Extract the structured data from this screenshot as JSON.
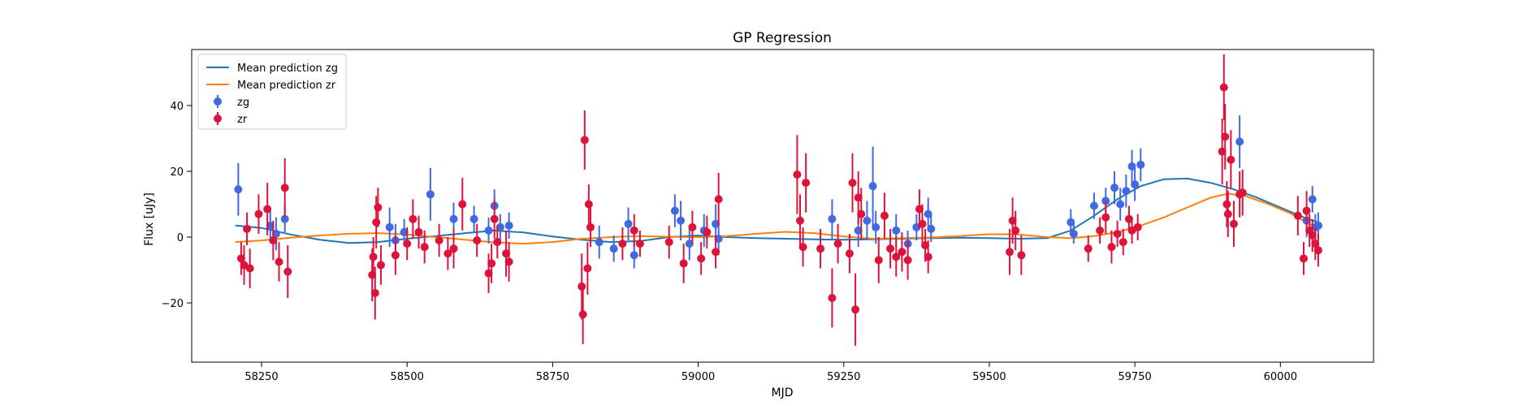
{
  "chart_data": {
    "type": "scatter",
    "title": "GP Regression",
    "xlabel": "MJD",
    "ylabel": "Flux [uJy]",
    "xlim": [
      58130,
      60160
    ],
    "ylim": [
      -38,
      57
    ],
    "xticks": [
      58250,
      58500,
      58750,
      59000,
      59250,
      59500,
      59750,
      60000
    ],
    "yticks": [
      -20,
      0,
      20,
      40
    ],
    "legend_position": "top-left",
    "grid": false,
    "series": [
      {
        "name": "Mean prediction zg",
        "kind": "line",
        "color": "#1f77b4",
        "points": [
          [
            58205,
            3.5
          ],
          [
            58250,
            2.8
          ],
          [
            58300,
            0.8
          ],
          [
            58350,
            -0.8
          ],
          [
            58400,
            -1.8
          ],
          [
            58450,
            -1.5
          ],
          [
            58500,
            -0.5
          ],
          [
            58550,
            0.3
          ],
          [
            58600,
            1.2
          ],
          [
            58650,
            2.0
          ],
          [
            58700,
            1.4
          ],
          [
            58750,
            0.2
          ],
          [
            58800,
            -0.8
          ],
          [
            58850,
            -1.5
          ],
          [
            58900,
            -1.2
          ],
          [
            58950,
            0.0
          ],
          [
            59000,
            0.5
          ],
          [
            59050,
            0.0
          ],
          [
            59100,
            -0.3
          ],
          [
            59150,
            -0.5
          ],
          [
            59200,
            -0.7
          ],
          [
            59250,
            -0.8
          ],
          [
            59300,
            -0.7
          ],
          [
            59350,
            -0.5
          ],
          [
            59400,
            -0.3
          ],
          [
            59450,
            -0.2
          ],
          [
            59500,
            -0.3
          ],
          [
            59550,
            -0.5
          ],
          [
            59600,
            -0.3
          ],
          [
            59640,
            2.0
          ],
          [
            59680,
            6.5
          ],
          [
            59720,
            11.5
          ],
          [
            59760,
            15.5
          ],
          [
            59800,
            17.6
          ],
          [
            59840,
            17.8
          ],
          [
            59880,
            16.5
          ],
          [
            59920,
            14.5
          ],
          [
            59960,
            12.0
          ],
          [
            60000,
            9.0
          ],
          [
            60040,
            6.0
          ],
          [
            60065,
            4.5
          ]
        ]
      },
      {
        "name": "Mean prediction zr",
        "kind": "line",
        "color": "#ff7f0e",
        "points": [
          [
            58205,
            -1.5
          ],
          [
            58250,
            -1.0
          ],
          [
            58300,
            -0.2
          ],
          [
            58350,
            0.5
          ],
          [
            58400,
            1.0
          ],
          [
            58450,
            1.2
          ],
          [
            58500,
            0.8
          ],
          [
            58550,
            0.0
          ],
          [
            58600,
            -0.8
          ],
          [
            58650,
            -1.6
          ],
          [
            58700,
            -2.0
          ],
          [
            58750,
            -1.5
          ],
          [
            58800,
            -0.5
          ],
          [
            58850,
            0.0
          ],
          [
            58900,
            0.3
          ],
          [
            58950,
            0.1
          ],
          [
            59000,
            0.0
          ],
          [
            59050,
            0.3
          ],
          [
            59100,
            1.0
          ],
          [
            59150,
            1.6
          ],
          [
            59200,
            1.2
          ],
          [
            59250,
            0.2
          ],
          [
            59300,
            -0.5
          ],
          [
            59350,
            -0.3
          ],
          [
            59400,
            -0.1
          ],
          [
            59450,
            0.3
          ],
          [
            59500,
            0.9
          ],
          [
            59550,
            0.8
          ],
          [
            59600,
            0.0
          ],
          [
            59640,
            -0.3
          ],
          [
            59680,
            0.3
          ],
          [
            59720,
            1.5
          ],
          [
            59760,
            3.5
          ],
          [
            59800,
            6.0
          ],
          [
            59840,
            9.0
          ],
          [
            59880,
            12.0
          ],
          [
            59910,
            13.2
          ],
          [
            59940,
            12.5
          ],
          [
            59980,
            10.0
          ],
          [
            60020,
            7.0
          ],
          [
            60065,
            2.5
          ]
        ]
      },
      {
        "name": "zg",
        "kind": "errorbar",
        "color": "#4169e1",
        "points": [
          [
            58210,
            14.5,
            8
          ],
          [
            58265,
            3.5,
            5
          ],
          [
            58275,
            1.0,
            5
          ],
          [
            58290,
            5.5,
            4
          ],
          [
            58470,
            3.0,
            6
          ],
          [
            58480,
            -1.0,
            5
          ],
          [
            58495,
            1.5,
            4
          ],
          [
            58540,
            13,
            8
          ],
          [
            58580,
            5.5,
            5
          ],
          [
            58615,
            5.5,
            4
          ],
          [
            58640,
            2.0,
            4
          ],
          [
            58650,
            9.5,
            5
          ],
          [
            58660,
            3.0,
            4
          ],
          [
            58675,
            3.5,
            4
          ],
          [
            58830,
            -1.5,
            5
          ],
          [
            58855,
            -3.5,
            4
          ],
          [
            58880,
            4.0,
            5
          ],
          [
            58890,
            -5.5,
            4
          ],
          [
            58960,
            8.0,
            5
          ],
          [
            58970,
            5.0,
            6
          ],
          [
            58985,
            -2.0,
            5
          ],
          [
            59010,
            2.0,
            5
          ],
          [
            59030,
            4.0,
            6
          ],
          [
            59035,
            -0.5,
            5
          ],
          [
            59230,
            5.5,
            6
          ],
          [
            59275,
            2.0,
            5
          ],
          [
            59290,
            5.0,
            6
          ],
          [
            59300,
            15.5,
            12
          ],
          [
            59305,
            3.0,
            5
          ],
          [
            59340,
            2.0,
            5
          ],
          [
            59360,
            -2.0,
            4
          ],
          [
            59375,
            3.0,
            4
          ],
          [
            59395,
            7.0,
            5
          ],
          [
            59400,
            2.5,
            4
          ],
          [
            59640,
            4.5,
            4
          ],
          [
            59645,
            1.0,
            3
          ],
          [
            59680,
            9.5,
            4
          ],
          [
            59700,
            11.0,
            4
          ],
          [
            59715,
            15.0,
            5
          ],
          [
            59725,
            10.0,
            5
          ],
          [
            59735,
            14.0,
            5
          ],
          [
            59745,
            21.5,
            5
          ],
          [
            59750,
            16.0,
            5
          ],
          [
            59760,
            22.0,
            5
          ],
          [
            59930,
            29.0,
            8
          ],
          [
            60045,
            5.0,
            5
          ],
          [
            60055,
            11.5,
            4
          ],
          [
            60060,
            3.0,
            4
          ],
          [
            60065,
            3.5,
            4
          ]
        ]
      },
      {
        "name": "zr",
        "kind": "errorbar",
        "color": "#dc143c",
        "points": [
          [
            58215,
            -6.5,
            5
          ],
          [
            58220,
            -8.5,
            6
          ],
          [
            58225,
            2.5,
            5
          ],
          [
            58230,
            -9.5,
            6
          ],
          [
            58245,
            7.0,
            6
          ],
          [
            58260,
            8.5,
            8
          ],
          [
            58270,
            -1.0,
            6
          ],
          [
            58280,
            -7.5,
            6
          ],
          [
            58290,
            15.0,
            9
          ],
          [
            58295,
            -10.5,
            8
          ],
          [
            58440,
            -11.5,
            8
          ],
          [
            58442,
            -6.0,
            6
          ],
          [
            58445,
            -17.0,
            8
          ],
          [
            58447,
            4.5,
            8
          ],
          [
            58450,
            9.0,
            6
          ],
          [
            58455,
            -8.5,
            6
          ],
          [
            58480,
            -5.5,
            6
          ],
          [
            58500,
            -2.0,
            5
          ],
          [
            58510,
            5.5,
            6
          ],
          [
            58520,
            1.5,
            5
          ],
          [
            58530,
            -3.0,
            5
          ],
          [
            58555,
            -1.0,
            5
          ],
          [
            58570,
            -5.0,
            5
          ],
          [
            58580,
            -3.5,
            6
          ],
          [
            58595,
            10.0,
            8
          ],
          [
            58620,
            -1.0,
            5
          ],
          [
            58640,
            -11.0,
            6
          ],
          [
            58645,
            -8.0,
            6
          ],
          [
            58650,
            5.5,
            6
          ],
          [
            58655,
            -1.5,
            5
          ],
          [
            58670,
            -5.0,
            7
          ],
          [
            58675,
            -7.5,
            6
          ],
          [
            58800,
            -15.0,
            10
          ],
          [
            58802,
            -23.5,
            9
          ],
          [
            58805,
            29.5,
            9
          ],
          [
            58810,
            -9.5,
            8
          ],
          [
            58812,
            10.0,
            6
          ],
          [
            58815,
            3.0,
            6
          ],
          [
            58870,
            -2.0,
            5
          ],
          [
            58890,
            2.0,
            5
          ],
          [
            58900,
            -2.0,
            4
          ],
          [
            58950,
            -1.5,
            5
          ],
          [
            58975,
            -8.0,
            6
          ],
          [
            58990,
            3.0,
            5
          ],
          [
            59005,
            -6.5,
            5
          ],
          [
            59015,
            1.5,
            5
          ],
          [
            59030,
            -4.5,
            5
          ],
          [
            59035,
            11.5,
            8
          ],
          [
            59170,
            19.0,
            12
          ],
          [
            59175,
            5.0,
            8
          ],
          [
            59180,
            -3.0,
            6
          ],
          [
            59185,
            16.5,
            9
          ],
          [
            59210,
            -3.5,
            6
          ],
          [
            59230,
            -18.5,
            9
          ],
          [
            59240,
            -2.0,
            6
          ],
          [
            59260,
            -5.0,
            6
          ],
          [
            59265,
            16.5,
            9
          ],
          [
            59270,
            -22.0,
            11
          ],
          [
            59275,
            12.0,
            8
          ],
          [
            59280,
            7.0,
            8
          ],
          [
            59310,
            -7.0,
            7
          ],
          [
            59320,
            6.5,
            7
          ],
          [
            59330,
            -3.5,
            6
          ],
          [
            59340,
            -6.0,
            6
          ],
          [
            59350,
            -4.5,
            6
          ],
          [
            59360,
            -7.0,
            6
          ],
          [
            59380,
            8.5,
            6
          ],
          [
            59385,
            4.0,
            6
          ],
          [
            59390,
            -2.5,
            5
          ],
          [
            59395,
            -6.0,
            5
          ],
          [
            59535,
            -4.5,
            7
          ],
          [
            59540,
            5.0,
            7
          ],
          [
            59545,
            2.0,
            6
          ],
          [
            59555,
            -5.5,
            6
          ],
          [
            59670,
            -3.5,
            4
          ],
          [
            59690,
            2.0,
            4
          ],
          [
            59700,
            6.0,
            5
          ],
          [
            59710,
            -3.0,
            5
          ],
          [
            59720,
            1.0,
            4
          ],
          [
            59730,
            -1.5,
            4
          ],
          [
            59740,
            5.5,
            4
          ],
          [
            59745,
            2.0,
            4
          ],
          [
            59755,
            3.0,
            4
          ],
          [
            59900,
            26.0,
            10
          ],
          [
            59903,
            45.5,
            10
          ],
          [
            59905,
            30.5,
            10
          ],
          [
            59908,
            10.0,
            7
          ],
          [
            59910,
            7.0,
            7
          ],
          [
            59915,
            23.5,
            9
          ],
          [
            59920,
            4.0,
            7
          ],
          [
            59930,
            13.0,
            7
          ],
          [
            59935,
            13.5,
            7
          ],
          [
            60030,
            6.5,
            6
          ],
          [
            60040,
            -6.5,
            5
          ],
          [
            60045,
            8.0,
            6
          ],
          [
            60050,
            2.0,
            5
          ],
          [
            60055,
            0.5,
            5
          ],
          [
            60060,
            -2.0,
            5
          ],
          [
            60065,
            -4.0,
            5
          ]
        ]
      }
    ]
  }
}
